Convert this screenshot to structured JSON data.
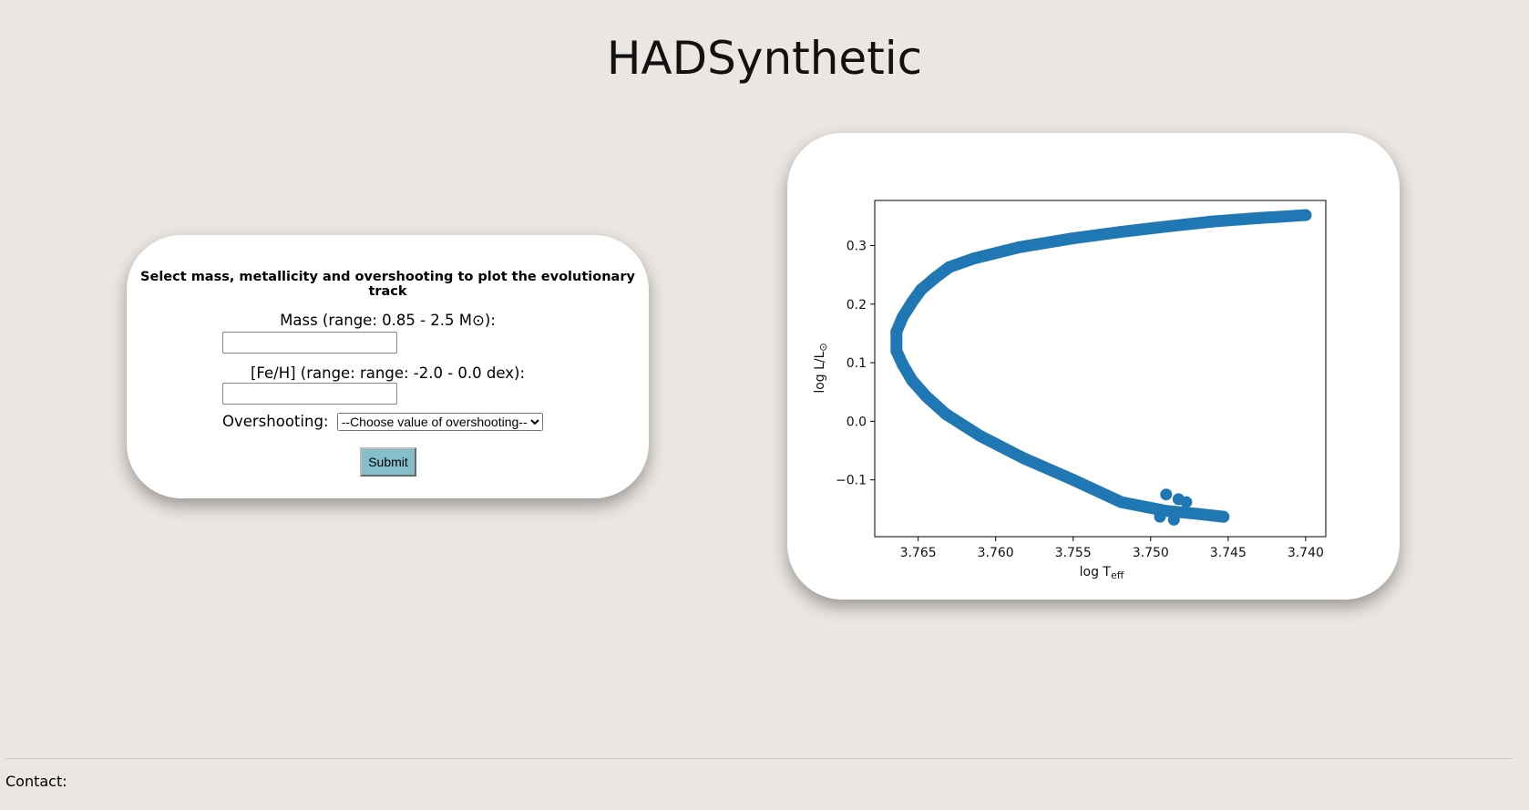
{
  "header": {
    "title": "HADSynthetic"
  },
  "form": {
    "heading": "Select mass, metallicity and overshooting to plot the evolutionary track",
    "mass_label": "Mass (range: 0.85 - 2.5 M⊙):",
    "feh_label": "[Fe/H] (range: range: -2.0 - 0.0 dex):",
    "overshooting_label": "Overshooting:",
    "overshooting_placeholder": "--Choose value of overshooting--",
    "submit": "Submit"
  },
  "footer": {
    "contact": "Contact:"
  },
  "chart_data": {
    "type": "scatter",
    "xlabel": {
      "text": "log T",
      "subscript": "eff"
    },
    "ylabel": {
      "text": "log L/L",
      "subscript": "⊙"
    },
    "xlim": [
      3.7678,
      3.7387
    ],
    "ylim": [
      -0.197,
      0.377
    ],
    "xticks": [
      3.765,
      {
        "value": 3.76,
        "label": "3.760"
      },
      3.755,
      {
        "value": 3.75,
        "label": "3.750"
      },
      3.745,
      {
        "value": 3.74,
        "label": "3.740"
      }
    ],
    "yticks": [
      {
        "value": -0.1,
        "label": "−0.1"
      },
      {
        "value": 0,
        "label": "0.0"
      },
      0.1,
      0.2,
      0.3
    ],
    "series": [
      {
        "color": "#1f77b4",
        "x": [
          3.74,
          3.743,
          3.746,
          3.7488,
          3.752,
          3.7551,
          3.7585,
          3.7614,
          3.763,
          3.7639,
          3.7648,
          3.7654,
          3.766,
          3.7664,
          3.7664,
          3.766,
          3.7654,
          3.7645,
          3.7632,
          3.761,
          3.7582,
          3.755,
          3.7519,
          3.749,
          3.747,
          3.7453
        ],
        "values": [
          0.352,
          0.347,
          0.341,
          0.333,
          0.323,
          0.312,
          0.297,
          0.278,
          0.263,
          0.245,
          0.225,
          0.203,
          0.178,
          0.153,
          0.12,
          0.097,
          0.07,
          0.043,
          0.012,
          -0.025,
          -0.063,
          -0.1,
          -0.138,
          -0.153,
          -0.158,
          -0.163
        ]
      },
      {
        "color": "#1f77b4",
        "x": [
          3.749,
          3.7482,
          3.7477,
          3.7494,
          3.7485
        ],
        "values": [
          -0.125,
          -0.133,
          -0.138,
          -0.163,
          -0.168
        ]
      }
    ]
  }
}
